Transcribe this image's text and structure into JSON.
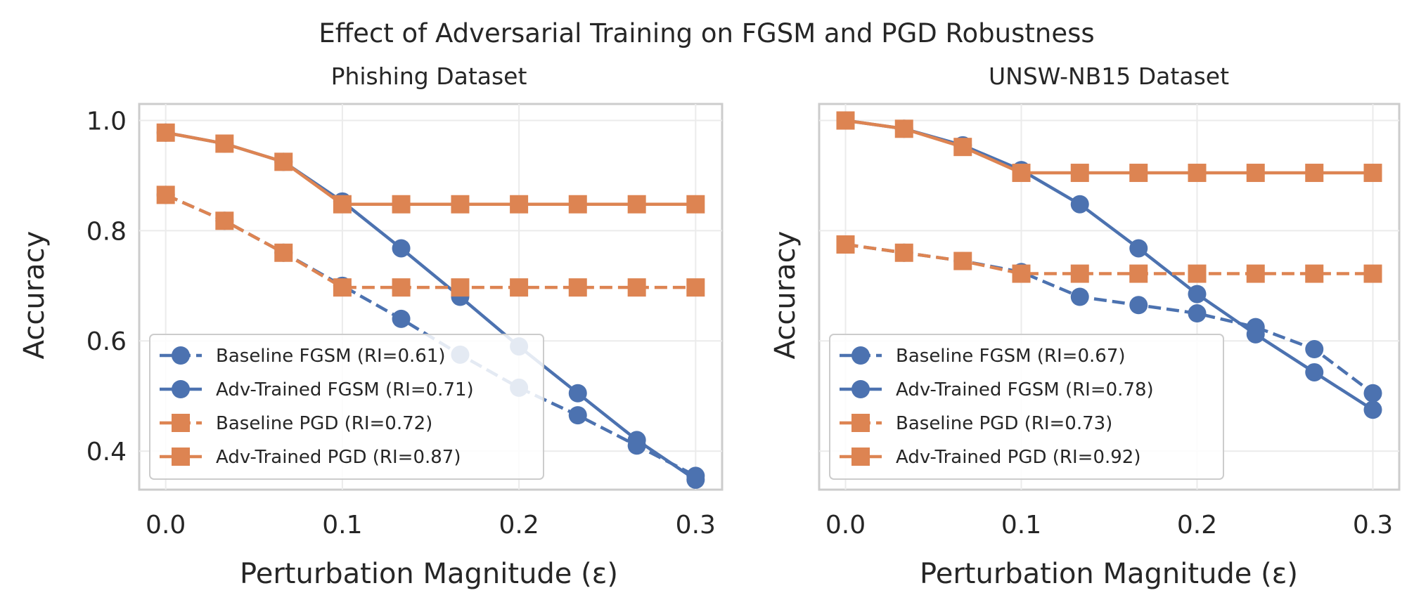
{
  "chart_data": {
    "type": "line",
    "title": "Effect of Adversarial Training on FGSM and PGD Robustness",
    "colors": {
      "fgsm": "#4c72b0",
      "pgd": "#dd8452"
    },
    "x": [
      0.0,
      0.0333,
      0.0667,
      0.1,
      0.1333,
      0.1667,
      0.2,
      0.2333,
      0.2667,
      0.3
    ],
    "xlim": [
      -0.015,
      0.315
    ],
    "xticks": [
      0.0,
      0.1,
      0.2,
      0.3
    ],
    "xtick_labels": [
      "0.0",
      "0.1",
      "0.2",
      "0.3"
    ],
    "ylim": [
      0.33,
      1.03
    ],
    "yticks": [
      0.4,
      0.6,
      0.8,
      1.0
    ],
    "ytick_labels": [
      "0.4",
      "0.6",
      "0.8",
      "1.0"
    ],
    "xlabel": "Perturbation Magnitude (ε)",
    "ylabel": "Accuracy",
    "panels": [
      {
        "title": "Phishing Dataset",
        "show_ytick_labels": true,
        "legend_position": "lower-left",
        "series": [
          {
            "name": "Baseline FGSM (RI=0.61)",
            "color": "#4c72b0",
            "marker": "circle",
            "dashed": true,
            "values": [
              0.865,
              0.818,
              0.76,
              0.7,
              0.64,
              0.575,
              0.515,
              0.465,
              0.41,
              0.355
            ]
          },
          {
            "name": "Adv-Trained FGSM (RI=0.71)",
            "color": "#4c72b0",
            "marker": "circle",
            "dashed": false,
            "values": [
              0.978,
              0.958,
              0.925,
              0.853,
              0.768,
              0.68,
              0.59,
              0.505,
              0.42,
              0.348
            ]
          },
          {
            "name": "Baseline PGD (RI=0.72)",
            "color": "#dd8452",
            "marker": "square",
            "dashed": true,
            "values": [
              0.865,
              0.818,
              0.76,
              0.697,
              0.697,
              0.697,
              0.697,
              0.697,
              0.697,
              0.697
            ]
          },
          {
            "name": "Adv-Trained PGD (RI=0.87)",
            "color": "#dd8452",
            "marker": "square",
            "dashed": false,
            "values": [
              0.978,
              0.958,
              0.925,
              0.848,
              0.848,
              0.848,
              0.848,
              0.848,
              0.848,
              0.848
            ]
          }
        ]
      },
      {
        "title": "UNSW-NB15 Dataset",
        "show_ytick_labels": false,
        "legend_position": "lower-left",
        "series": [
          {
            "name": "Baseline FGSM (RI=0.67)",
            "color": "#4c72b0",
            "marker": "circle",
            "dashed": true,
            "values": [
              0.775,
              0.76,
              0.745,
              0.725,
              0.68,
              0.665,
              0.65,
              0.625,
              0.585,
              0.505
            ]
          },
          {
            "name": "Adv-Trained FGSM (RI=0.78)",
            "color": "#4c72b0",
            "marker": "circle",
            "dashed": false,
            "values": [
              1.0,
              0.985,
              0.955,
              0.91,
              0.848,
              0.768,
              0.685,
              0.612,
              0.543,
              0.475
            ]
          },
          {
            "name": "Baseline PGD (RI=0.73)",
            "color": "#dd8452",
            "marker": "square",
            "dashed": true,
            "values": [
              0.775,
              0.76,
              0.745,
              0.722,
              0.722,
              0.722,
              0.722,
              0.722,
              0.722,
              0.722
            ]
          },
          {
            "name": "Adv-Trained PGD (RI=0.92)",
            "color": "#dd8452",
            "marker": "square",
            "dashed": false,
            "values": [
              1.0,
              0.985,
              0.952,
              0.905,
              0.905,
              0.905,
              0.905,
              0.905,
              0.905,
              0.905
            ]
          }
        ]
      }
    ]
  }
}
